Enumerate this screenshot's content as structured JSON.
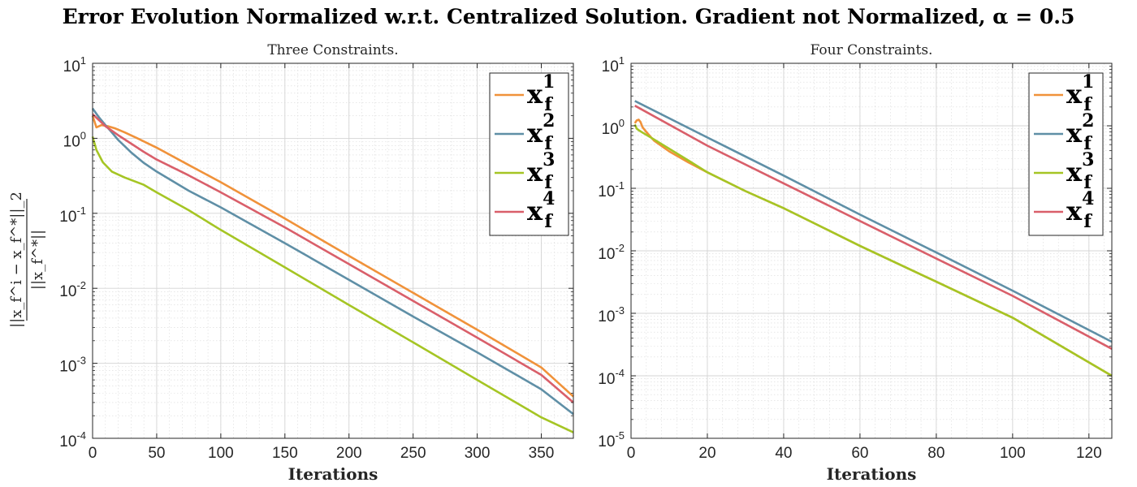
{
  "figure": {
    "title": "Error Evolution Normalized w.r.t. Centralized Solution. Gradient not Normalized, α = 0.5",
    "ylabel": {
      "numerator": "||x_f^i − x_f^*||_2",
      "denominator": "||x_f^*||"
    }
  },
  "chart_data": [
    {
      "type": "line",
      "title": "Three Constraints.",
      "xlabel": "Iterations",
      "xlim": [
        0,
        375
      ],
      "ylim": [
        0.0001,
        10
      ],
      "yscale": "log",
      "grid": true,
      "minor_grid": true,
      "legend_location": "top-right",
      "xticks": [
        0,
        50,
        100,
        150,
        200,
        250,
        300,
        350
      ],
      "yticks": [
        {
          "base": "10",
          "exp": "-4",
          "value": 0.0001
        },
        {
          "base": "10",
          "exp": "-3",
          "value": 0.001
        },
        {
          "base": "10",
          "exp": "-2",
          "value": 0.01
        },
        {
          "base": "10",
          "exp": "-1",
          "value": 0.1
        },
        {
          "base": "10",
          "exp": "0",
          "value": 1
        },
        {
          "base": "10",
          "exp": "1",
          "value": 10
        }
      ],
      "series": [
        {
          "name": "x_f^1",
          "base": "x",
          "sup": "1",
          "sub": "f",
          "color": "#f0923a",
          "x": [
            0,
            3,
            7,
            12,
            18,
            25,
            35,
            50,
            75,
            100,
            150,
            200,
            250,
            300,
            350,
            375
          ],
          "y": [
            2.0,
            1.4,
            1.5,
            1.45,
            1.35,
            1.2,
            1.0,
            0.75,
            0.44,
            0.26,
            0.085,
            0.027,
            0.0087,
            0.0028,
            0.00088,
            0.00036
          ]
        },
        {
          "name": "x_f^2",
          "base": "x",
          "sup": "2",
          "sub": "f",
          "color": "#5f8fa6",
          "x": [
            0,
            5,
            10,
            15,
            20,
            30,
            40,
            50,
            75,
            100,
            150,
            200,
            250,
            300,
            350,
            375
          ],
          "y": [
            2.5,
            1.9,
            1.5,
            1.2,
            0.95,
            0.65,
            0.47,
            0.36,
            0.2,
            0.12,
            0.04,
            0.013,
            0.0042,
            0.0014,
            0.00045,
            0.00021
          ]
        },
        {
          "name": "x_f^3",
          "base": "x",
          "sup": "3",
          "sub": "f",
          "color": "#a5c524",
          "x": [
            0,
            3,
            8,
            15,
            25,
            40,
            50,
            75,
            100,
            150,
            200,
            250,
            300,
            350,
            375
          ],
          "y": [
            1.05,
            0.7,
            0.48,
            0.36,
            0.3,
            0.24,
            0.19,
            0.11,
            0.06,
            0.019,
            0.006,
            0.0019,
            0.0006,
            0.00019,
            0.00012
          ]
        },
        {
          "name": "x_f^4",
          "base": "x",
          "sup": "4",
          "sub": "f",
          "color": "#d95f6a",
          "x": [
            0,
            10,
            20,
            30,
            40,
            50,
            75,
            100,
            150,
            200,
            250,
            300,
            350,
            375
          ],
          "y": [
            2.1,
            1.45,
            1.1,
            0.85,
            0.66,
            0.52,
            0.32,
            0.19,
            0.065,
            0.021,
            0.0068,
            0.0022,
            0.0007,
            0.0003
          ]
        }
      ]
    },
    {
      "type": "line",
      "title": "Four Constraints.",
      "xlabel": "Iterations",
      "xlim": [
        0,
        126
      ],
      "ylim": [
        1e-05,
        10
      ],
      "yscale": "log",
      "grid": true,
      "minor_grid": true,
      "legend_location": "top-right",
      "xticks": [
        0,
        20,
        40,
        60,
        80,
        100,
        120
      ],
      "yticks": [
        {
          "base": "10",
          "exp": "-5",
          "value": 1e-05
        },
        {
          "base": "10",
          "exp": "-4",
          "value": 0.0001
        },
        {
          "base": "10",
          "exp": "-3",
          "value": 0.001
        },
        {
          "base": "10",
          "exp": "-2",
          "value": 0.01
        },
        {
          "base": "10",
          "exp": "-1",
          "value": 0.1
        },
        {
          "base": "10",
          "exp": "0",
          "value": 1
        },
        {
          "base": "10",
          "exp": "1",
          "value": 10
        }
      ],
      "series": [
        {
          "name": "x_f^1",
          "base": "x",
          "sup": "1",
          "sub": "f",
          "color": "#f0923a",
          "x": [
            1,
            1.5,
            2,
            2.5,
            3,
            4,
            6,
            10,
            15,
            20,
            30,
            40,
            60,
            80,
            100,
            126
          ],
          "y": [
            1.1,
            1.22,
            1.25,
            1.15,
            0.95,
            0.8,
            0.58,
            0.39,
            0.26,
            0.18,
            0.09,
            0.048,
            0.012,
            0.0032,
            0.00085,
            0.0001
          ]
        },
        {
          "name": "x_f^2",
          "base": "x",
          "sup": "2",
          "sub": "f",
          "color": "#5f8fa6",
          "x": [
            1,
            20,
            40,
            60,
            80,
            100,
            126
          ],
          "y": [
            2.5,
            0.65,
            0.16,
            0.038,
            0.0094,
            0.0023,
            0.00035
          ]
        },
        {
          "name": "x_f^3",
          "base": "x",
          "sup": "3",
          "sub": "f",
          "color": "#a5c524",
          "x": [
            1,
            1.5,
            2,
            3,
            5,
            10,
            15,
            20,
            30,
            40,
            60,
            80,
            100,
            126
          ],
          "y": [
            1.05,
            0.9,
            0.85,
            0.78,
            0.66,
            0.43,
            0.28,
            0.18,
            0.09,
            0.048,
            0.012,
            0.0032,
            0.00085,
            0.0001
          ]
        },
        {
          "name": "x_f^4",
          "base": "x",
          "sup": "4",
          "sub": "f",
          "color": "#d95f6a",
          "x": [
            1,
            20,
            40,
            60,
            80,
            100,
            126
          ],
          "y": [
            2.1,
            0.48,
            0.12,
            0.03,
            0.0075,
            0.0019,
            0.00027
          ]
        }
      ]
    }
  ]
}
